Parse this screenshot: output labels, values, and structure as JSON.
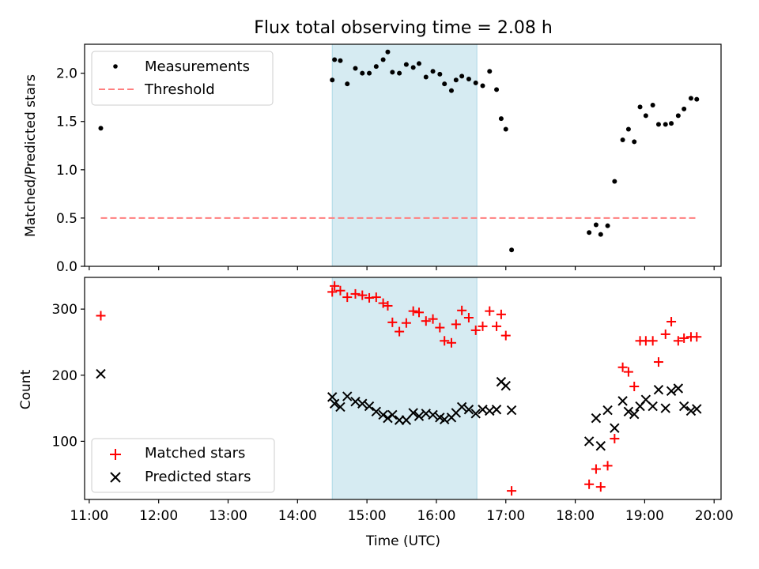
{
  "chart_data": [
    {
      "type": "scatter",
      "title": "Flux total observing time = 2.08 h",
      "xlabel": "",
      "ylabel": "Matched/Predicted stars",
      "xlim": [
        "10:56",
        "20:06"
      ],
      "ylim": [
        0,
        2.3
      ],
      "yticks": [
        0.0,
        0.5,
        1.0,
        1.5,
        2.0
      ],
      "ytick_labels": [
        "0.0",
        "0.5",
        "1.0",
        "1.5",
        "2.0"
      ],
      "shaded_span": {
        "x": [
          "14:30",
          "16:35"
        ],
        "color": "#add8e6"
      },
      "legend": {
        "position": "upper-left",
        "entries": [
          {
            "label": "Measurements",
            "marker": "dot",
            "color": "#000000"
          },
          {
            "label": "Threshold",
            "marker": "dashed-line",
            "color": "#ff7f7f"
          }
        ]
      },
      "series": [
        {
          "name": "Measurements",
          "marker": "dot",
          "color": "#000000",
          "points": [
            [
              "11:10",
              1.43
            ],
            [
              "14:30",
              1.93
            ],
            [
              "14:32",
              2.14
            ],
            [
              "14:37",
              2.13
            ],
            [
              "14:43",
              1.89
            ],
            [
              "14:50",
              2.05
            ],
            [
              "14:56",
              2.0
            ],
            [
              "15:02",
              2.0
            ],
            [
              "15:08",
              2.07
            ],
            [
              "15:14",
              2.14
            ],
            [
              "15:18",
              2.22
            ],
            [
              "15:22",
              2.01
            ],
            [
              "15:28",
              2.0
            ],
            [
              "15:34",
              2.09
            ],
            [
              "15:40",
              2.06
            ],
            [
              "15:45",
              2.1
            ],
            [
              "15:51",
              1.96
            ],
            [
              "15:57",
              2.02
            ],
            [
              "16:03",
              1.99
            ],
            [
              "16:07",
              1.89
            ],
            [
              "16:13",
              1.82
            ],
            [
              "16:17",
              1.93
            ],
            [
              "16:22",
              1.97
            ],
            [
              "16:28",
              1.94
            ],
            [
              "16:34",
              1.9
            ],
            [
              "16:40",
              1.87
            ],
            [
              "16:46",
              2.02
            ],
            [
              "16:52",
              1.83
            ],
            [
              "16:56",
              1.53
            ],
            [
              "17:00",
              1.42
            ],
            [
              "17:05",
              0.17
            ],
            [
              "18:12",
              0.35
            ],
            [
              "18:18",
              0.43
            ],
            [
              "18:22",
              0.33
            ],
            [
              "18:28",
              0.42
            ],
            [
              "18:34",
              0.88
            ],
            [
              "18:41",
              1.31
            ],
            [
              "18:46",
              1.42
            ],
            [
              "18:51",
              1.29
            ],
            [
              "18:56",
              1.65
            ],
            [
              "19:01",
              1.56
            ],
            [
              "19:07",
              1.67
            ],
            [
              "19:12",
              1.47
            ],
            [
              "19:18",
              1.47
            ],
            [
              "19:23",
              1.48
            ],
            [
              "19:29",
              1.56
            ],
            [
              "19:34",
              1.63
            ],
            [
              "19:40",
              1.74
            ],
            [
              "19:45",
              1.73
            ]
          ]
        },
        {
          "name": "Threshold",
          "line": "dashed",
          "color": "#ff7f7f",
          "points": [
            [
              "11:10",
              0.5
            ],
            [
              "19:46",
              0.5
            ]
          ]
        }
      ]
    },
    {
      "type": "scatter",
      "xlabel": "Time (UTC)",
      "ylabel": "Count",
      "xlim": [
        "10:56",
        "20:06"
      ],
      "ylim": [
        12,
        348
      ],
      "xticks": [
        "11:00",
        "12:00",
        "13:00",
        "14:00",
        "15:00",
        "16:00",
        "17:00",
        "18:00",
        "19:00",
        "20:00"
      ],
      "yticks": [
        100,
        200,
        300
      ],
      "ytick_labels": [
        "100",
        "200",
        "300"
      ],
      "shaded_span": {
        "x": [
          "14:30",
          "16:35"
        ],
        "color": "#add8e6"
      },
      "legend": {
        "position": "lower-left",
        "entries": [
          {
            "label": "Matched stars",
            "marker": "plus",
            "color": "#ff0000"
          },
          {
            "label": "Predicted stars",
            "marker": "x",
            "color": "#000000"
          }
        ]
      },
      "series": [
        {
          "name": "Matched stars",
          "marker": "plus",
          "color": "#ff0000",
          "points": [
            [
              "11:10",
              290
            ],
            [
              "14:30",
              326
            ],
            [
              "14:32",
              335
            ],
            [
              "14:37",
              328
            ],
            [
              "14:43",
              318
            ],
            [
              "14:50",
              323
            ],
            [
              "14:56",
              321
            ],
            [
              "15:02",
              317
            ],
            [
              "15:08",
              318
            ],
            [
              "15:14",
              309
            ],
            [
              "15:18",
              305
            ],
            [
              "15:22",
              280
            ],
            [
              "15:28",
              266
            ],
            [
              "15:34",
              279
            ],
            [
              "15:40",
              297
            ],
            [
              "15:45",
              295
            ],
            [
              "15:51",
              282
            ],
            [
              "15:57",
              285
            ],
            [
              "16:03",
              272
            ],
            [
              "16:07",
              252
            ],
            [
              "16:13",
              249
            ],
            [
              "16:17",
              277
            ],
            [
              "16:22",
              298
            ],
            [
              "16:28",
              287
            ],
            [
              "16:34",
              268
            ],
            [
              "16:40",
              274
            ],
            [
              "16:46",
              297
            ],
            [
              "16:52",
              274
            ],
            [
              "16:56",
              292
            ],
            [
              "17:00",
              260
            ],
            [
              "17:05",
              25
            ],
            [
              "18:12",
              35
            ],
            [
              "18:18",
              58
            ],
            [
              "18:22",
              31
            ],
            [
              "18:28",
              63
            ],
            [
              "18:34",
              104
            ],
            [
              "18:41",
              212
            ],
            [
              "18:46",
              205
            ],
            [
              "18:51",
              183
            ],
            [
              "18:56",
              252
            ],
            [
              "19:01",
              252
            ],
            [
              "19:07",
              252
            ],
            [
              "19:12",
              220
            ],
            [
              "19:18",
              262
            ],
            [
              "19:23",
              281
            ],
            [
              "19:29",
              252
            ],
            [
              "19:34",
              256
            ],
            [
              "19:40",
              258
            ],
            [
              "19:45",
              258
            ]
          ]
        },
        {
          "name": "Predicted stars",
          "marker": "x",
          "color": "#000000",
          "points": [
            [
              "11:10",
              202
            ],
            [
              "14:30",
              167
            ],
            [
              "14:32",
              157
            ],
            [
              "14:37",
              152
            ],
            [
              "14:43",
              168
            ],
            [
              "14:50",
              160
            ],
            [
              "14:56",
              157
            ],
            [
              "15:02",
              153
            ],
            [
              "15:08",
              145
            ],
            [
              "15:14",
              140
            ],
            [
              "15:18",
              135
            ],
            [
              "15:22",
              140
            ],
            [
              "15:28",
              132
            ],
            [
              "15:34",
              132
            ],
            [
              "15:40",
              143
            ],
            [
              "15:45",
              138
            ],
            [
              "15:51",
              142
            ],
            [
              "15:57",
              140
            ],
            [
              "16:03",
              136
            ],
            [
              "16:07",
              133
            ],
            [
              "16:13",
              136
            ],
            [
              "16:17",
              143
            ],
            [
              "16:22",
              152
            ],
            [
              "16:28",
              148
            ],
            [
              "16:34",
              142
            ],
            [
              "16:40",
              148
            ],
            [
              "16:46",
              146
            ],
            [
              "16:52",
              148
            ],
            [
              "16:56",
              190
            ],
            [
              "17:00",
              184
            ],
            [
              "17:05",
              147
            ],
            [
              "18:12",
              100
            ],
            [
              "18:18",
              135
            ],
            [
              "18:22",
              93
            ],
            [
              "18:28",
              147
            ],
            [
              "18:34",
              120
            ],
            [
              "18:41",
              161
            ],
            [
              "18:46",
              145
            ],
            [
              "18:51",
              141
            ],
            [
              "18:56",
              153
            ],
            [
              "19:01",
              163
            ],
            [
              "19:07",
              153
            ],
            [
              "19:12",
              178
            ],
            [
              "19:18",
              150
            ],
            [
              "19:23",
              176
            ],
            [
              "19:29",
              180
            ],
            [
              "19:34",
              153
            ],
            [
              "19:40",
              146
            ],
            [
              "19:45",
              149
            ]
          ]
        }
      ]
    }
  ]
}
